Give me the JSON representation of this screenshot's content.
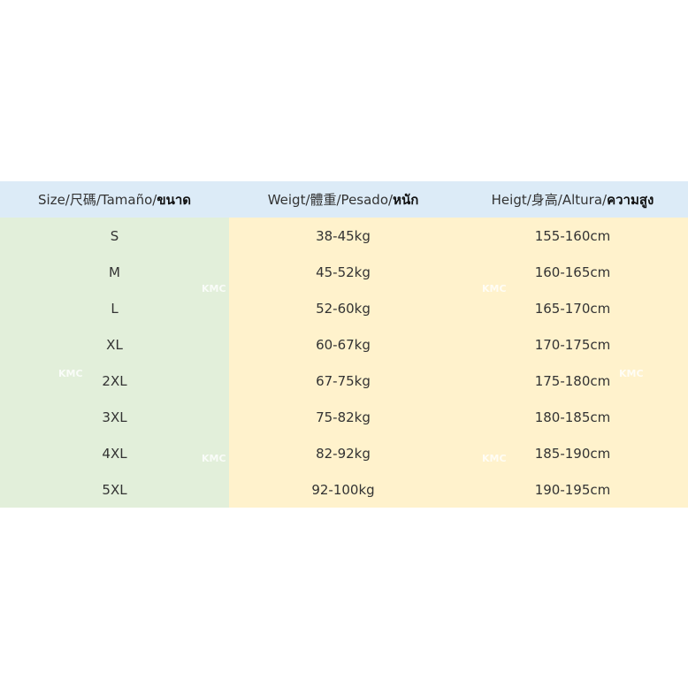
{
  "table": {
    "header": [
      [
        "Size/尺碼/Tamaño/",
        "ขนาด"
      ],
      [
        "Weigt/體重/Pesado/",
        "หนัก"
      ],
      [
        "Heigt/身高/Altura/",
        "ความสูง"
      ]
    ],
    "rows": [
      [
        "S",
        "38-45kg",
        "155-160cm"
      ],
      [
        "M",
        "45-52kg",
        "160-165cm"
      ],
      [
        "L",
        "52-60kg",
        "165-170cm"
      ],
      [
        "XL",
        "60-67kg",
        "170-175cm"
      ],
      [
        "2XL",
        "67-75kg",
        "175-180cm"
      ],
      [
        "3XL",
        "75-82kg",
        "180-185cm"
      ],
      [
        "4XL",
        "82-92kg",
        "185-190cm"
      ],
      [
        "5XL",
        "92-100kg",
        "190-195cm"
      ]
    ]
  },
  "watermark": "KMC"
}
